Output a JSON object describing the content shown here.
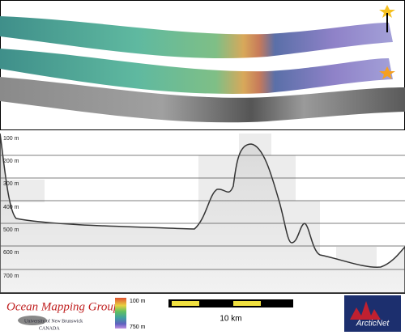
{
  "profile": {
    "depth_labels": [
      "100 m",
      "200 m",
      "300 m",
      "400 m",
      "500 m",
      "600 m",
      "700 m"
    ]
  },
  "color_scale": {
    "top_label": "100 m",
    "bottom_label": "750 m"
  },
  "scale_bar": {
    "label": "10 km"
  },
  "logos": {
    "omg": {
      "title": "Ocean Mapping Group",
      "subtitle": "University of New Brunswick",
      "country": "CANADA"
    },
    "arcticnet": "ArcticNet"
  }
}
